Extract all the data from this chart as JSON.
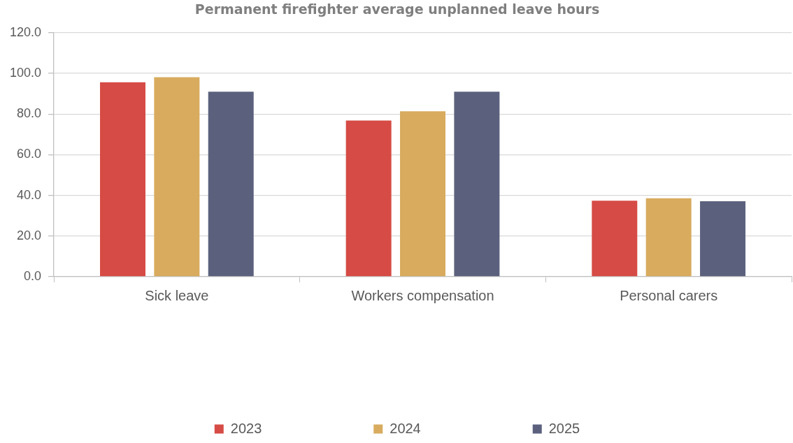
{
  "chart_data": {
    "type": "bar",
    "title": "Permanent firefighter average unplanned leave hours",
    "categories": [
      "Sick leave",
      "Workers compensation",
      "Personal carers"
    ],
    "series": [
      {
        "name": "2023",
        "color": "#d64b45",
        "values": [
          95.6,
          76.8,
          37.4
        ]
      },
      {
        "name": "2024",
        "color": "#d8ab5e",
        "values": [
          98.1,
          81.4,
          38.6
        ]
      },
      {
        "name": "2025",
        "color": "#5b617d",
        "values": [
          91.0,
          91.0,
          37.1
        ]
      }
    ],
    "ylim": [
      0,
      120
    ],
    "yticks": [
      {
        "value": 0,
        "label": "0.0"
      },
      {
        "value": 20,
        "label": "20.0"
      },
      {
        "value": 40,
        "label": "40.0"
      },
      {
        "value": 60,
        "label": "60.0"
      },
      {
        "value": 80,
        "label": "80.0"
      },
      {
        "value": 100,
        "label": "100.0"
      },
      {
        "value": 120,
        "label": "120.0"
      }
    ],
    "grid": "y",
    "legend": "bottom"
  }
}
